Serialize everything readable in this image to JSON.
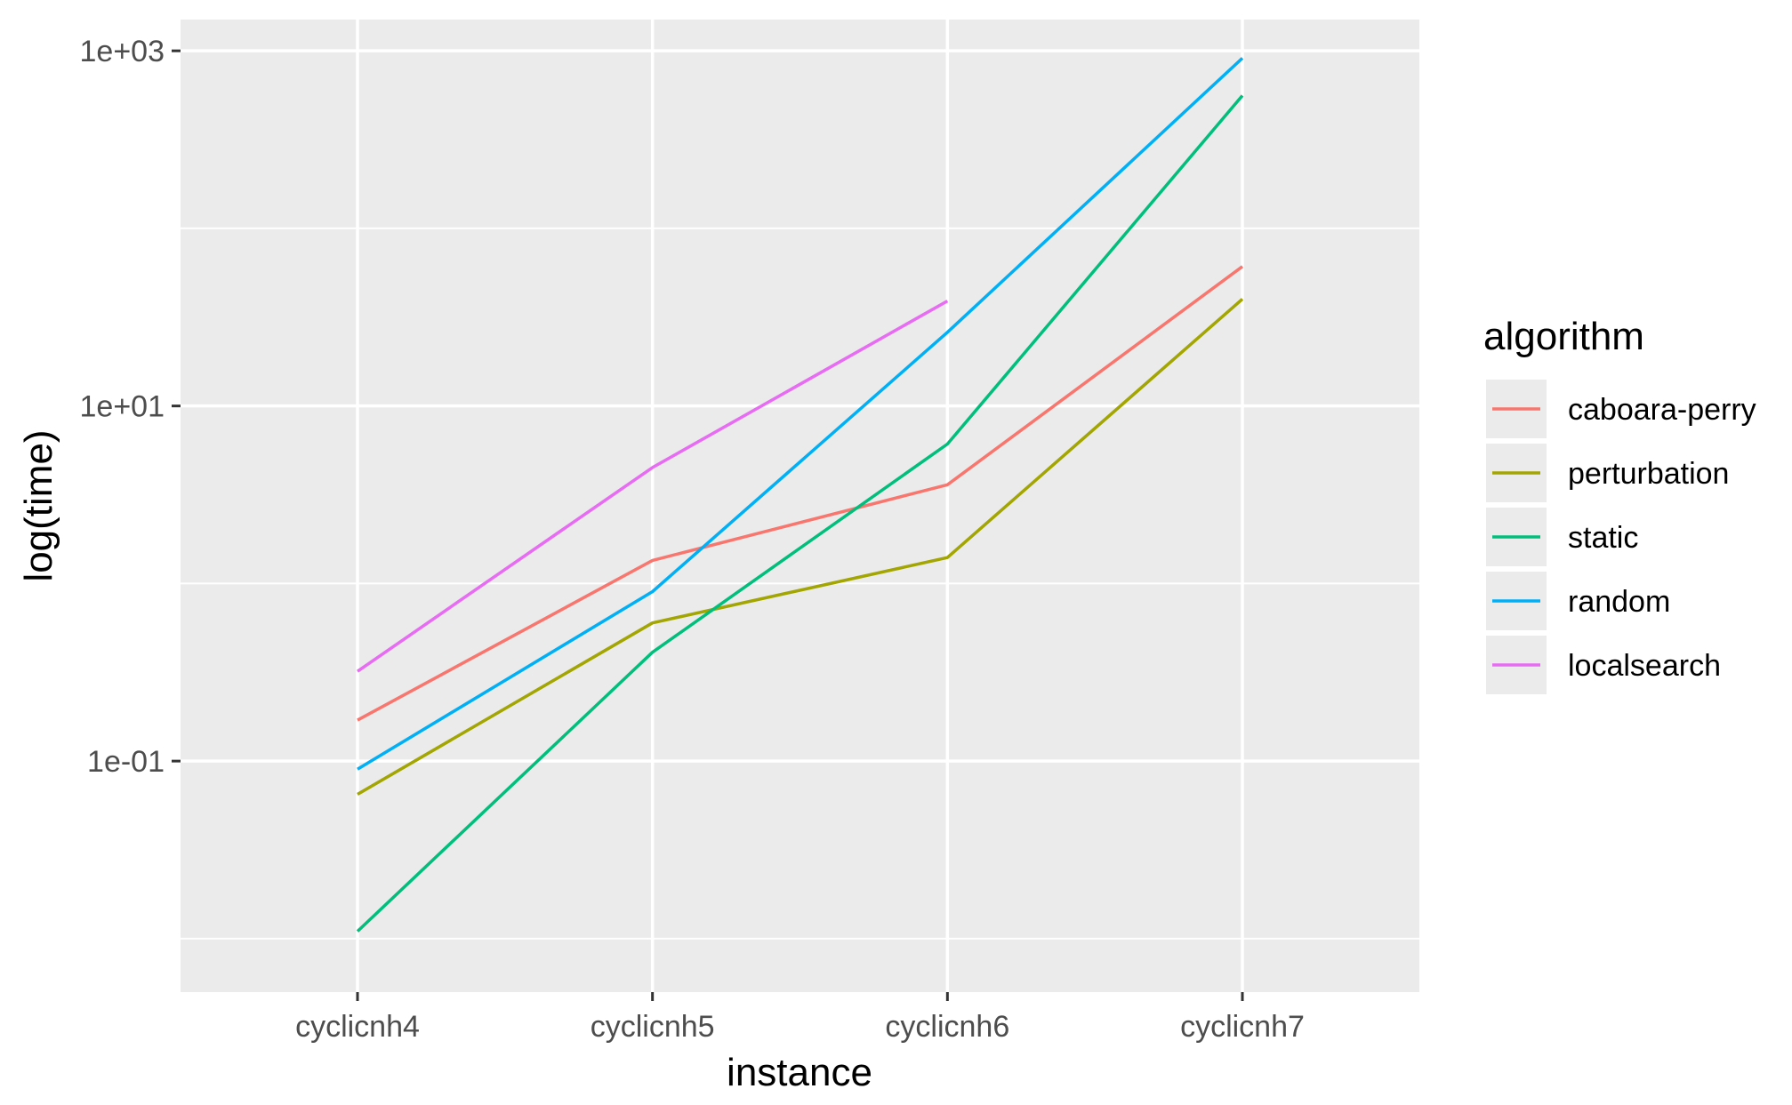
{
  "chart_data": {
    "type": "line",
    "xlabel": "instance",
    "ylabel": "log(time)",
    "y_scale": "log10",
    "ylim": [
      0.005,
      1500
    ],
    "y_ticks": [
      {
        "value": 0.1,
        "label": "1e-01"
      },
      {
        "value": 10,
        "label": "1e+01"
      },
      {
        "value": 1000,
        "label": "1e+03"
      }
    ],
    "y_minor_ticks": [
      0.01,
      1,
      100
    ],
    "categories": [
      "cyclicnh4",
      "cyclicnh5",
      "cyclicnh6",
      "cyclicnh7"
    ],
    "series": [
      {
        "name": "caboara-perry",
        "color": "#F8766D",
        "values": [
          0.17,
          1.35,
          3.6,
          61
        ]
      },
      {
        "name": "perturbation",
        "color": "#A3A500",
        "values": [
          0.065,
          0.6,
          1.4,
          40
        ]
      },
      {
        "name": "static",
        "color": "#00BF7D",
        "values": [
          0.011,
          0.41,
          6.1,
          560
        ]
      },
      {
        "name": "random",
        "color": "#00B0F6",
        "values": [
          0.09,
          0.9,
          26,
          910
        ]
      },
      {
        "name": "localsearch",
        "color": "#E76BF3",
        "values": [
          0.32,
          4.5,
          39,
          null
        ]
      }
    ],
    "legend": {
      "title": "algorithm",
      "position": "right"
    },
    "grid": true,
    "panel_background": "#EBEBEB",
    "grid_color": "#FFFFFF"
  }
}
